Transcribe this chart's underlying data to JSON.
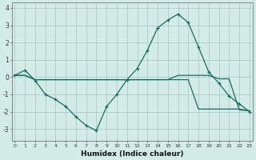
{
  "xlabel": "Humidex (Indice chaleur)",
  "background_color": "#d4ece8",
  "grid_color": "#aaccc8",
  "line_color": "#1a6b60",
  "x_all": [
    0,
    1,
    2,
    3,
    4,
    5,
    6,
    7,
    8,
    9,
    10,
    11,
    12,
    13,
    14,
    15,
    16,
    17,
    18,
    19,
    20,
    21,
    22,
    23
  ],
  "series1_x": [
    0,
    1,
    2,
    3,
    4,
    5,
    6,
    7,
    8,
    9,
    10,
    11,
    12,
    13,
    14,
    15,
    16,
    17,
    18,
    19,
    20,
    21,
    22,
    23
  ],
  "series1_y": [
    0.1,
    0.4,
    -0.2,
    -1.0,
    -1.3,
    -1.7,
    -2.3,
    -2.8,
    -3.1,
    -1.7,
    -1.0,
    -0.15,
    0.5,
    1.55,
    2.85,
    3.3,
    3.65,
    3.15,
    1.75,
    0.3,
    -0.35,
    -1.1,
    -1.55,
    -2.0
  ],
  "series2_x": [
    0,
    1,
    2,
    3,
    4,
    5,
    6,
    7,
    8,
    9,
    10,
    11,
    12,
    13,
    14,
    15,
    16,
    17,
    18,
    19,
    20,
    21,
    22,
    23
  ],
  "series2_y": [
    0.1,
    0.1,
    -0.15,
    -0.15,
    -0.15,
    -0.15,
    -0.15,
    -0.15,
    -0.15,
    -0.15,
    -0.15,
    -0.15,
    -0.15,
    -0.15,
    -0.15,
    -0.15,
    0.1,
    0.1,
    0.1,
    0.1,
    -0.1,
    -0.1,
    -1.9,
    -1.95
  ],
  "series3_x": [
    0,
    1,
    2,
    3,
    4,
    5,
    6,
    7,
    8,
    9,
    10,
    11,
    12,
    13,
    14,
    15,
    16,
    17,
    18,
    19,
    20,
    21,
    22,
    23
  ],
  "series3_y": [
    0.1,
    0.1,
    -0.15,
    -0.15,
    -0.15,
    -0.15,
    -0.15,
    -0.15,
    -0.15,
    -0.15,
    -0.15,
    -0.15,
    -0.15,
    -0.15,
    -0.15,
    -0.15,
    -0.15,
    -0.15,
    -1.85,
    -1.85,
    -1.85,
    -1.85,
    -1.85,
    -1.95
  ],
  "ylim": [
    -3.7,
    4.3
  ],
  "yticks": [
    -3,
    -2,
    -1,
    0,
    1,
    2,
    3,
    4
  ],
  "xlim": [
    -0.3,
    23.3
  ]
}
